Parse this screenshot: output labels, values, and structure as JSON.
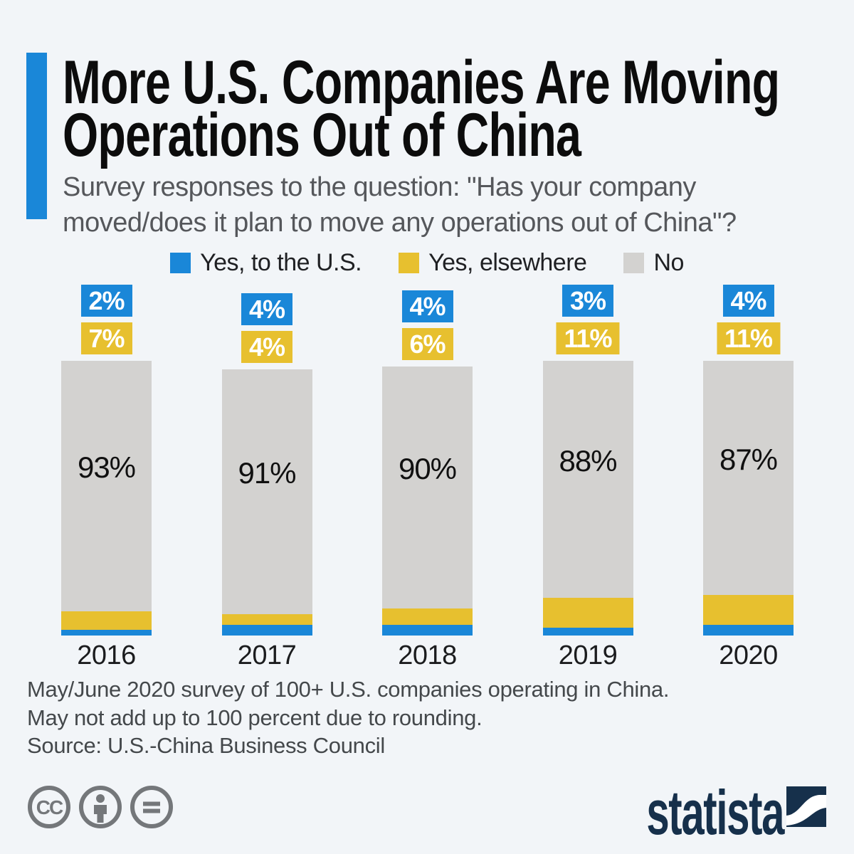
{
  "background_color": "#f2f5f8",
  "accent_color": "#1a87d8",
  "brand_color": "#16304b",
  "header": {
    "title_line1": "More U.S. Companies Are Moving",
    "title_line2": "Operations Out of China",
    "subtitle_line1": "Survey responses to the question: \"Has your company",
    "subtitle_line2": "moved/does it plan to move any operations out of China\"?"
  },
  "legend": [
    {
      "label": "Yes, to the U.S.",
      "color": "#1a87d8"
    },
    {
      "label": "Yes, elsewhere",
      "color": "#e7c02f"
    },
    {
      "label": "No",
      "color": "#d3d2d0"
    }
  ],
  "chart_data": {
    "type": "bar",
    "stacked": true,
    "orientation": "vertical",
    "categories": [
      "2016",
      "2017",
      "2018",
      "2019",
      "2020"
    ],
    "series": [
      {
        "name": "Yes, to the U.S.",
        "color": "#1a87d8",
        "values": [
          2,
          4,
          4,
          3,
          4
        ]
      },
      {
        "name": "Yes, elsewhere",
        "color": "#e7c02f",
        "values": [
          7,
          4,
          6,
          11,
          11
        ]
      },
      {
        "name": "No",
        "color": "#d3d2d0",
        "values": [
          93,
          91,
          90,
          88,
          87
        ]
      }
    ],
    "value_suffix": "%",
    "ylim": [
      0,
      102
    ],
    "grid": false,
    "legend_position": "top",
    "value_labels": "blue and yellow shown in callout boxes above each bar; gray shown inside bar"
  },
  "footer": {
    "note_line1": "May/June 2020 survey of 100+ U.S. companies operating in China.",
    "note_line2": "May not add up to 100 percent due to rounding.",
    "source": "Source: U.S.-China Business Council",
    "license_icons": [
      "cc-icon",
      "attribution-person-icon",
      "equals-icon"
    ],
    "brand": "statista"
  }
}
